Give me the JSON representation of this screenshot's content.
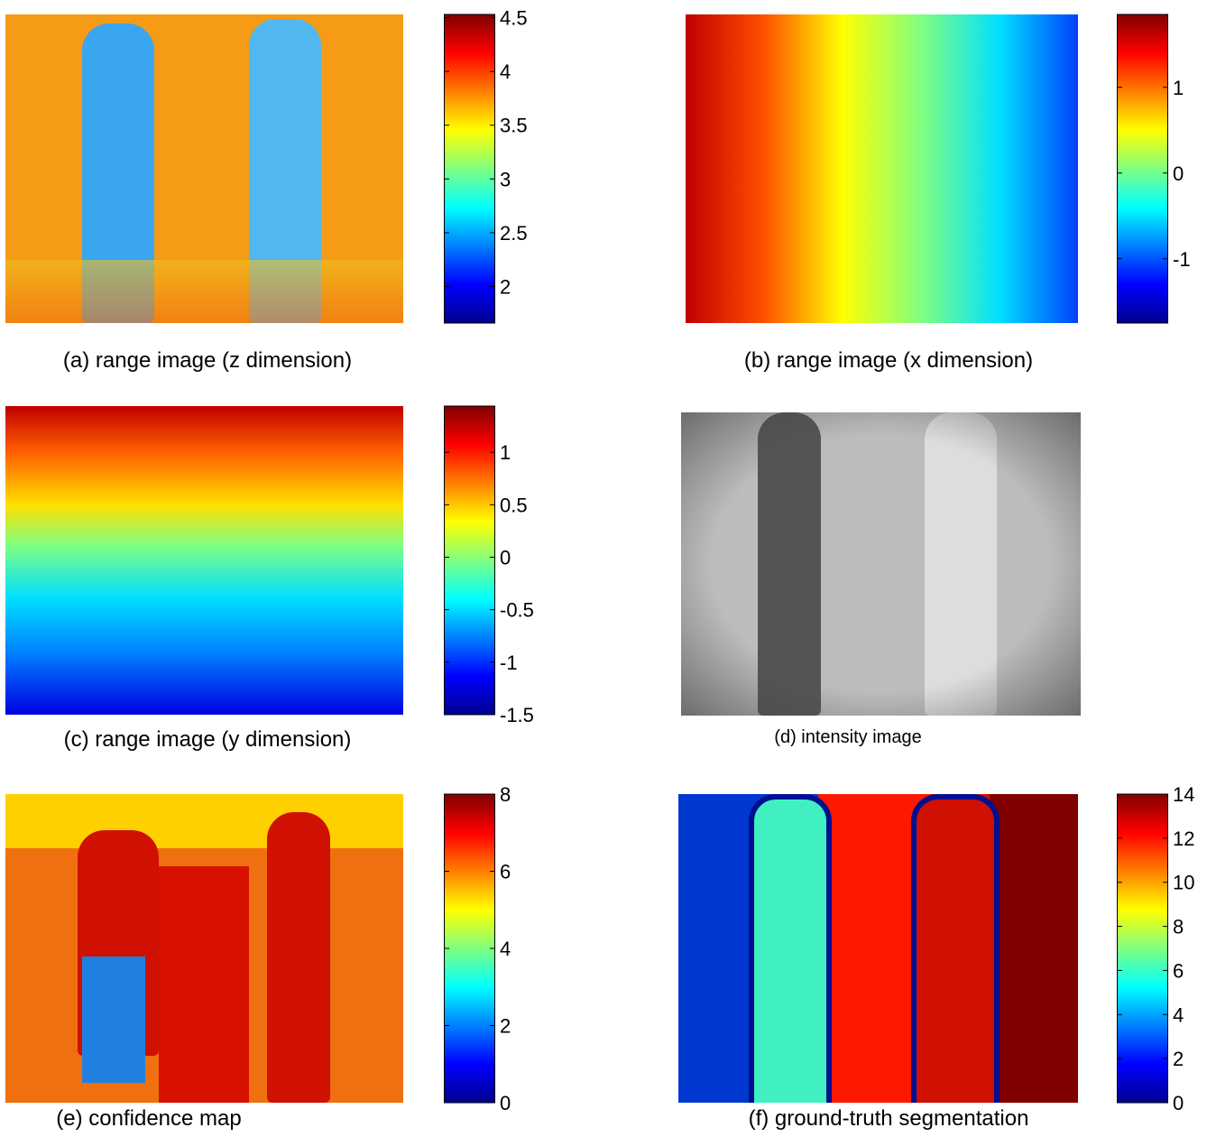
{
  "panels": [
    {
      "caption": "(a) range image (z dimension)",
      "colorbar": {
        "lim": [
          1.66,
          4.53
        ],
        "ticks": [
          2,
          2.5,
          3,
          3.5,
          4,
          4.5
        ]
      }
    },
    {
      "caption": "(b) range image (x dimension)",
      "colorbar": {
        "lim": [
          -1.75,
          1.85
        ],
        "ticks": [
          -1,
          0,
          1
        ]
      }
    },
    {
      "caption": "(c) range image (y dimension)",
      "colorbar": {
        "lim": [
          -1.5,
          1.44
        ],
        "ticks": [
          -1.5,
          -1,
          -0.5,
          0,
          0.5,
          1
        ]
      }
    },
    {
      "caption": "(d) intensity image"
    },
    {
      "caption": "(e) confidence map",
      "colorbar": {
        "lim": [
          0,
          8
        ],
        "ticks": [
          0,
          2,
          4,
          6,
          8
        ]
      }
    },
    {
      "caption": "(f) ground-truth segmentation",
      "colorbar": {
        "lim": [
          0,
          14
        ],
        "ticks": [
          0,
          2,
          4,
          6,
          8,
          10,
          12,
          14
        ]
      }
    }
  ]
}
